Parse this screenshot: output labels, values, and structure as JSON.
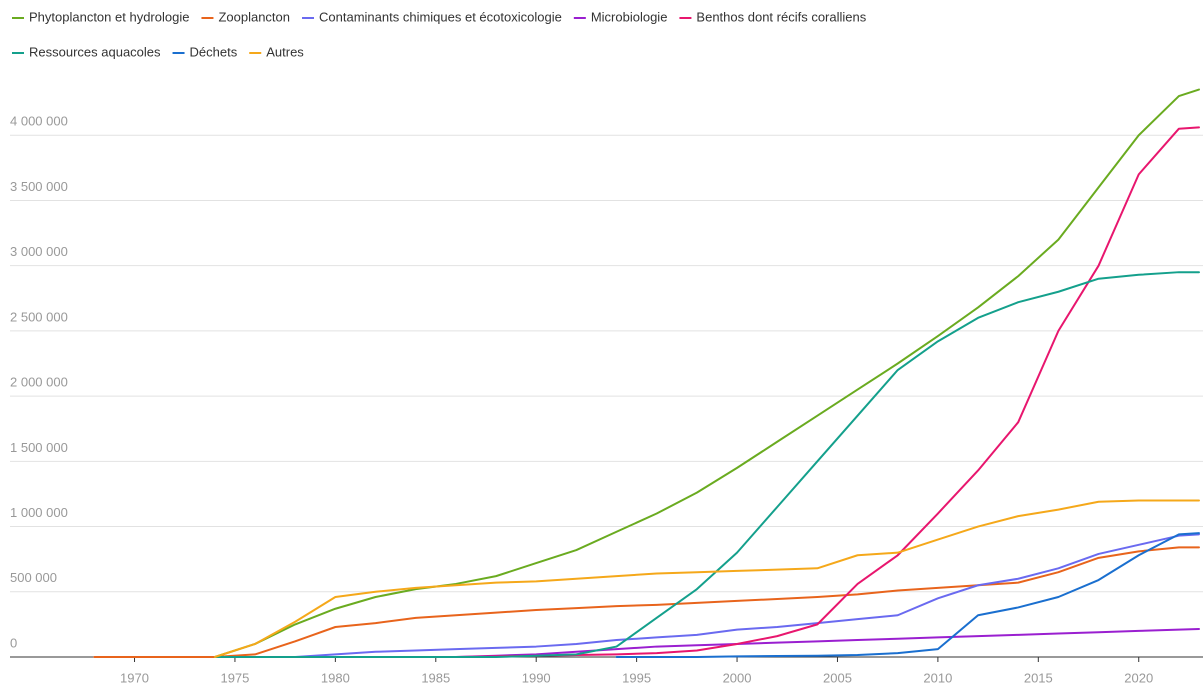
{
  "chart_data": {
    "type": "line",
    "x": [
      1968,
      1970,
      1972,
      1974,
      1976,
      1978,
      1980,
      1982,
      1984,
      1986,
      1988,
      1990,
      1992,
      1994,
      1996,
      1998,
      2000,
      2002,
      2004,
      2006,
      2008,
      2010,
      2012,
      2014,
      2016,
      2018,
      2020,
      2022,
      2023
    ],
    "series": [
      {
        "name": "Phytoplancton et hydrologie",
        "color": "#6aab20",
        "values": [
          null,
          null,
          null,
          0,
          100000,
          250000,
          370000,
          460000,
          520000,
          560000,
          620000,
          720000,
          820000,
          960000,
          1100000,
          1260000,
          1450000,
          1650000,
          1850000,
          2050000,
          2250000,
          2460000,
          2680000,
          2920000,
          3200000,
          3600000,
          4000000,
          4300000,
          4350000
        ]
      },
      {
        "name": "Zooplancton",
        "color": "#e8641c",
        "values": [
          0,
          0,
          0,
          0,
          20000,
          120000,
          230000,
          260000,
          300000,
          320000,
          340000,
          360000,
          375000,
          390000,
          400000,
          415000,
          430000,
          445000,
          460000,
          480000,
          510000,
          530000,
          550000,
          570000,
          650000,
          760000,
          810000,
          840000,
          840000
        ]
      },
      {
        "name": "Contaminants chimiques et écotoxicologie",
        "color": "#6a6af0",
        "values": [
          null,
          null,
          null,
          null,
          0,
          0,
          20000,
          40000,
          50000,
          60000,
          70000,
          80000,
          100000,
          130000,
          150000,
          170000,
          210000,
          230000,
          260000,
          290000,
          320000,
          450000,
          550000,
          600000,
          680000,
          790000,
          860000,
          930000,
          940000
        ]
      },
      {
        "name": "Microbiologie",
        "color": "#9a1fd0",
        "values": [
          null,
          null,
          null,
          null,
          null,
          null,
          null,
          null,
          null,
          0,
          10000,
          20000,
          40000,
          60000,
          80000,
          90000,
          100000,
          110000,
          120000,
          130000,
          140000,
          150000,
          160000,
          170000,
          180000,
          190000,
          200000,
          210000,
          215000
        ]
      },
      {
        "name": "Benthos dont récifs coralliens",
        "color": "#e8166e",
        "values": [
          null,
          null,
          null,
          null,
          null,
          null,
          null,
          null,
          null,
          0,
          5000,
          10000,
          15000,
          20000,
          30000,
          50000,
          100000,
          160000,
          250000,
          560000,
          780000,
          1100000,
          1430000,
          1800000,
          2500000,
          3000000,
          3700000,
          4050000,
          4060000
        ]
      },
      {
        "name": "Ressources aquacoles",
        "color": "#14a08c",
        "values": [
          null,
          null,
          null,
          0,
          0,
          0,
          0,
          0,
          0,
          0,
          0,
          10000,
          20000,
          80000,
          300000,
          520000,
          800000,
          1150000,
          1500000,
          1850000,
          2200000,
          2420000,
          2600000,
          2720000,
          2800000,
          2900000,
          2930000,
          2950000,
          2950000
        ]
      },
      {
        "name": "Déchets",
        "color": "#1a6fcf",
        "values": [
          null,
          null,
          null,
          null,
          null,
          null,
          null,
          null,
          null,
          null,
          null,
          null,
          null,
          0,
          0,
          0,
          5000,
          8000,
          10000,
          15000,
          30000,
          60000,
          320000,
          380000,
          460000,
          590000,
          780000,
          940000,
          950000
        ]
      },
      {
        "name": "Autres",
        "color": "#f5a81a",
        "values": [
          null,
          null,
          null,
          0,
          100000,
          270000,
          460000,
          500000,
          530000,
          550000,
          570000,
          580000,
          600000,
          620000,
          640000,
          650000,
          660000,
          670000,
          680000,
          780000,
          800000,
          900000,
          1000000,
          1080000,
          1130000,
          1190000,
          1200000,
          1200000,
          1200000
        ]
      }
    ],
    "xlim": [
      1963.8,
      2023.2
    ],
    "xticks": [
      1970,
      1975,
      1980,
      1985,
      1990,
      1995,
      2000,
      2005,
      2010,
      2015,
      2020
    ],
    "ylim": [
      0,
      4500000
    ],
    "yticks": [
      0,
      {
        "value": 500000,
        "label": "500 000"
      },
      {
        "value": 1000000,
        "label": "1 000 000"
      },
      {
        "value": 1500000,
        "label": "1 500 000"
      },
      {
        "value": 2000000,
        "label": "2 000 000"
      },
      {
        "value": 2500000,
        "label": "2 500 000"
      },
      {
        "value": 3000000,
        "label": "3 000 000"
      },
      {
        "value": 3500000,
        "label": "3 500 000"
      },
      {
        "value": 4000000,
        "label": "4 000 000"
      }
    ],
    "grid": true,
    "legend": "top"
  }
}
